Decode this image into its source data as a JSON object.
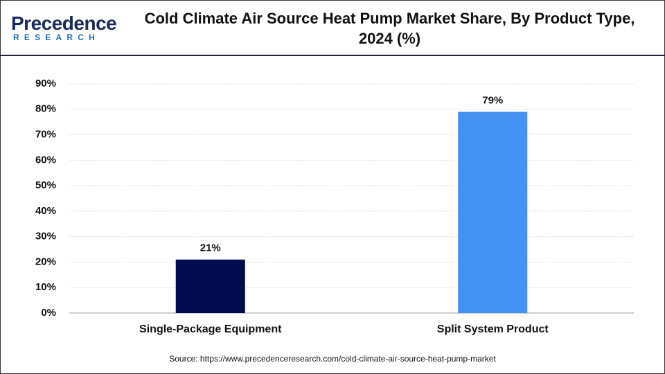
{
  "chart_data": {
    "type": "bar",
    "title": "Cold Climate Air Source Heat Pump Market Share, By Product Type, 2024 (%)",
    "logo": {
      "name": "Precedence",
      "tagline": "RESEARCH"
    },
    "source": "Source: https://www.precedenceresearch.com/cold-climate-air-source-heat-pump-market",
    "categories": [
      "Single-Package Equipment",
      "Split System Product"
    ],
    "values": [
      21,
      79
    ],
    "value_labels": [
      "21%",
      "79%"
    ],
    "colors": [
      "#020a4e",
      "#4391f0"
    ],
    "ylim": [
      0,
      90
    ],
    "yticks": [
      {
        "value": 0,
        "label": "0%"
      },
      {
        "value": 10,
        "label": "10%"
      },
      {
        "value": 20,
        "label": "20%"
      },
      {
        "value": 30,
        "label": "30%"
      },
      {
        "value": 40,
        "label": "40%"
      },
      {
        "value": 50,
        "label": "50%"
      },
      {
        "value": 60,
        "label": "60%"
      },
      {
        "value": 70,
        "label": "70%"
      },
      {
        "value": 80,
        "label": "80%"
      },
      {
        "value": 90,
        "label": "90%"
      }
    ],
    "grid": true
  }
}
